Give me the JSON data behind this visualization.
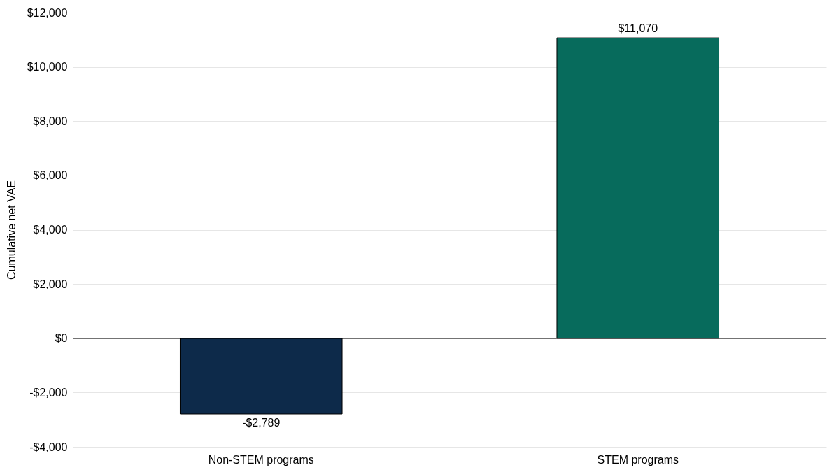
{
  "chart_data": {
    "type": "bar",
    "ylabel": "Cumulative net VAE",
    "categories": [
      "Non-STEM programs",
      "STEM programs"
    ],
    "values": [
      -2789,
      11070
    ],
    "colors": [
      "#0d2a4a",
      "#076b5c"
    ],
    "value_labels": [
      "-$2,789",
      "$11,070"
    ],
    "ylim": [
      -4000,
      12000
    ],
    "yticks": [
      {
        "value": -4000,
        "label": "-$4,000"
      },
      {
        "value": -2000,
        "label": "-$2,000"
      },
      {
        "value": 0,
        "label": "$0"
      },
      {
        "value": 2000,
        "label": "$2,000"
      },
      {
        "value": 4000,
        "label": "$4,000"
      },
      {
        "value": 6000,
        "label": "$6,000"
      },
      {
        "value": 8000,
        "label": "$8,000"
      },
      {
        "value": 10000,
        "label": "$10,000"
      },
      {
        "value": 12000,
        "label": "$12,000"
      }
    ],
    "ref_lines": [
      {
        "axis": "y",
        "value": 0,
        "color": "#000000"
      }
    ],
    "grid": "y"
  }
}
